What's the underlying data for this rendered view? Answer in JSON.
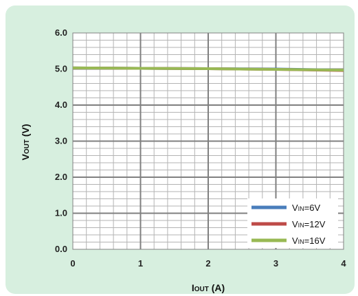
{
  "chart_data": {
    "type": "line",
    "title": "",
    "xlabel": {
      "main": "I",
      "sub": "OUT",
      "unit": " (A)"
    },
    "ylabel": {
      "main": "V",
      "sub": "OUT",
      "unit": " (V)"
    },
    "xlim": [
      0,
      4
    ],
    "ylim": [
      0,
      6
    ],
    "x_ticks": [
      "0",
      "1",
      "2",
      "3",
      "4"
    ],
    "y_ticks": [
      "0.0",
      "1.0",
      "2.0",
      "3.0",
      "4.0",
      "5.0",
      "6.0"
    ],
    "grid": true,
    "legend_position": "bottom-right",
    "series": [
      {
        "name": {
          "main": "V",
          "sub": "IN",
          "rest": "=6V"
        },
        "color": "#4a7ebb",
        "x": [
          0,
          1,
          2,
          3,
          4
        ],
        "y": [
          5.03,
          5.02,
          5.01,
          5.0,
          4.97
        ]
      },
      {
        "name": {
          "main": "V",
          "sub": "IN",
          "rest": "=12V"
        },
        "color": "#be4b48",
        "x": [
          0,
          1,
          2,
          3,
          4
        ],
        "y": [
          5.03,
          5.02,
          5.01,
          4.99,
          4.96
        ]
      },
      {
        "name": {
          "main": "V",
          "sub": "IN",
          "rest": "=16V"
        },
        "color": "#98b954",
        "x": [
          0,
          1,
          2,
          3,
          4
        ],
        "y": [
          5.03,
          5.02,
          5.01,
          4.99,
          4.97
        ]
      }
    ]
  }
}
